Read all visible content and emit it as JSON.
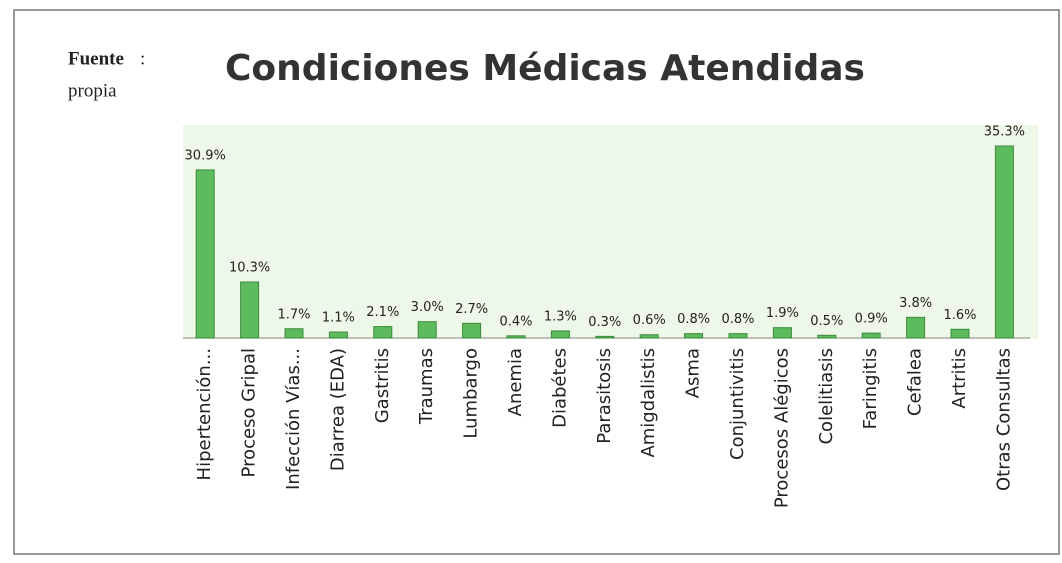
{
  "chart_data": {
    "type": "bar",
    "title": "Condiciones Médicas Atendidas",
    "source": {
      "label": "Fuente",
      "separator": ":",
      "text": "propia"
    },
    "categories": [
      "Hipertención...",
      "Proceso Gripal",
      "Infección Vías...",
      "Diarrea (EDA)",
      "Gastritis",
      "Traumas",
      "Lumbargo",
      "Anemia",
      "Diabétes",
      "Parasitosis",
      "Amigdalistis",
      "Asma",
      "Conjuntivitis",
      "Procesos Alégicos",
      "Colelitiasis",
      "Faringitis",
      "Cefalea",
      "Artritis",
      "Otras Consultas"
    ],
    "values": [
      30.9,
      10.3,
      1.7,
      1.1,
      2.1,
      3.0,
      2.7,
      0.4,
      1.3,
      0.3,
      0.6,
      0.8,
      0.8,
      1.9,
      0.5,
      0.9,
      3.8,
      1.6,
      35.3
    ],
    "value_labels": [
      "30.9%",
      "10.3%",
      "1.7%",
      "1.1%",
      "2.1%",
      "3.0%",
      "2.7%",
      "0.4%",
      "1.3%",
      "0.3%",
      "0.6%",
      "0.8%",
      "0.8%",
      "1.9%",
      "0.5%",
      "0.9%",
      "3.8%",
      "1.6%",
      "35.3%"
    ],
    "color": "#5dbb5d"
  }
}
